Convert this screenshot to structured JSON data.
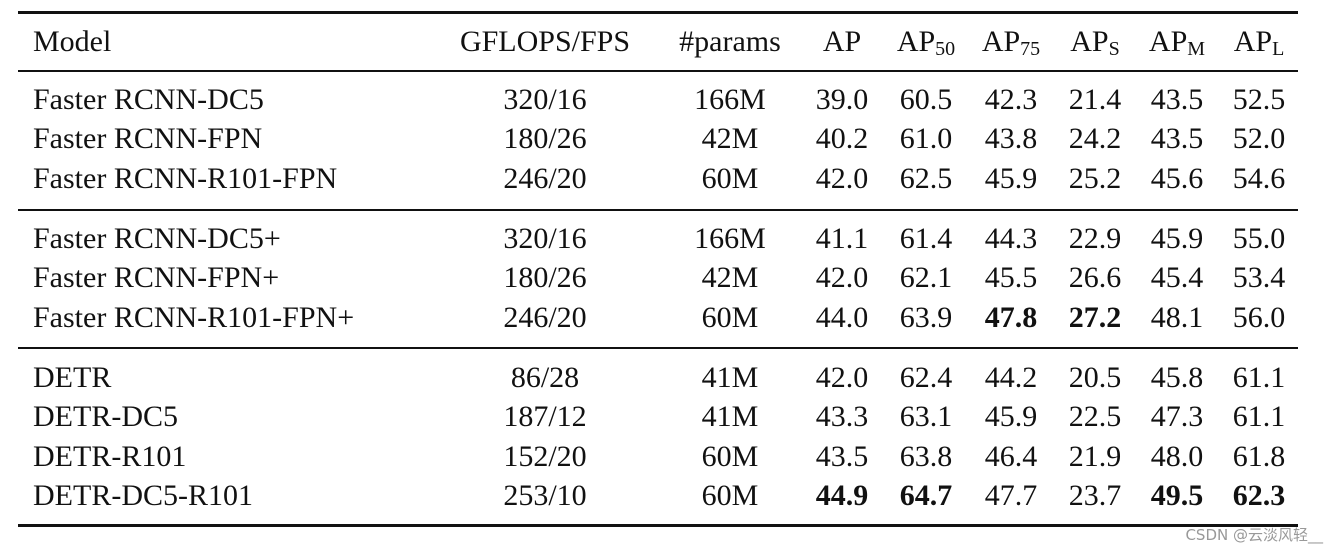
{
  "table": {
    "header": [
      {
        "text": "Model"
      },
      {
        "text": "GFLOPS/FPS"
      },
      {
        "text": "#params"
      },
      {
        "text": "AP"
      },
      {
        "text": "AP",
        "sub": "50"
      },
      {
        "text": "AP",
        "sub": "75"
      },
      {
        "text": "AP",
        "sub": "S"
      },
      {
        "text": "AP",
        "sub": "M"
      },
      {
        "text": "AP",
        "sub": "L"
      }
    ],
    "groups": [
      [
        [
          "Faster RCNN-DC5",
          "320/16",
          "166M",
          "39.0",
          "60.5",
          "42.3",
          "21.4",
          "43.5",
          "52.5"
        ],
        [
          "Faster RCNN-FPN",
          "180/26",
          "42M",
          "40.2",
          "61.0",
          "43.8",
          "24.2",
          "43.5",
          "52.0"
        ],
        [
          "Faster RCNN-R101-FPN",
          "246/20",
          "60M",
          "42.0",
          "62.5",
          "45.9",
          "25.2",
          "45.6",
          "54.6"
        ]
      ],
      [
        [
          "Faster RCNN-DC5+",
          "320/16",
          "166M",
          "41.1",
          "61.4",
          "44.3",
          "22.9",
          "45.9",
          "55.0"
        ],
        [
          "Faster RCNN-FPN+",
          "180/26",
          "42M",
          "42.0",
          "62.1",
          "45.5",
          "26.6",
          "45.4",
          "53.4"
        ],
        [
          "Faster RCNN-R101-FPN+",
          "246/20",
          "60M",
          "44.0",
          "63.9",
          "47.8",
          "27.2",
          "48.1",
          "56.0"
        ]
      ],
      [
        [
          "DETR",
          "86/28",
          "41M",
          "42.0",
          "62.4",
          "44.2",
          "20.5",
          "45.8",
          "61.1"
        ],
        [
          "DETR-DC5",
          "187/12",
          "41M",
          "43.3",
          "63.1",
          "45.9",
          "22.5",
          "47.3",
          "61.1"
        ],
        [
          "DETR-R101",
          "152/20",
          "60M",
          "43.5",
          "63.8",
          "46.4",
          "21.9",
          "48.0",
          "61.8"
        ],
        [
          "DETR-DC5-R101",
          "253/10",
          "60M",
          "44.9",
          "64.7",
          "47.7",
          "23.7",
          "49.5",
          "62.3"
        ]
      ]
    ],
    "bold": [
      [
        1,
        2,
        5
      ],
      [
        1,
        2,
        6
      ],
      [
        2,
        3,
        3
      ],
      [
        2,
        3,
        4
      ],
      [
        2,
        3,
        7
      ],
      [
        2,
        3,
        8
      ]
    ]
  },
  "watermark": "CSDN @云淡风轻__"
}
